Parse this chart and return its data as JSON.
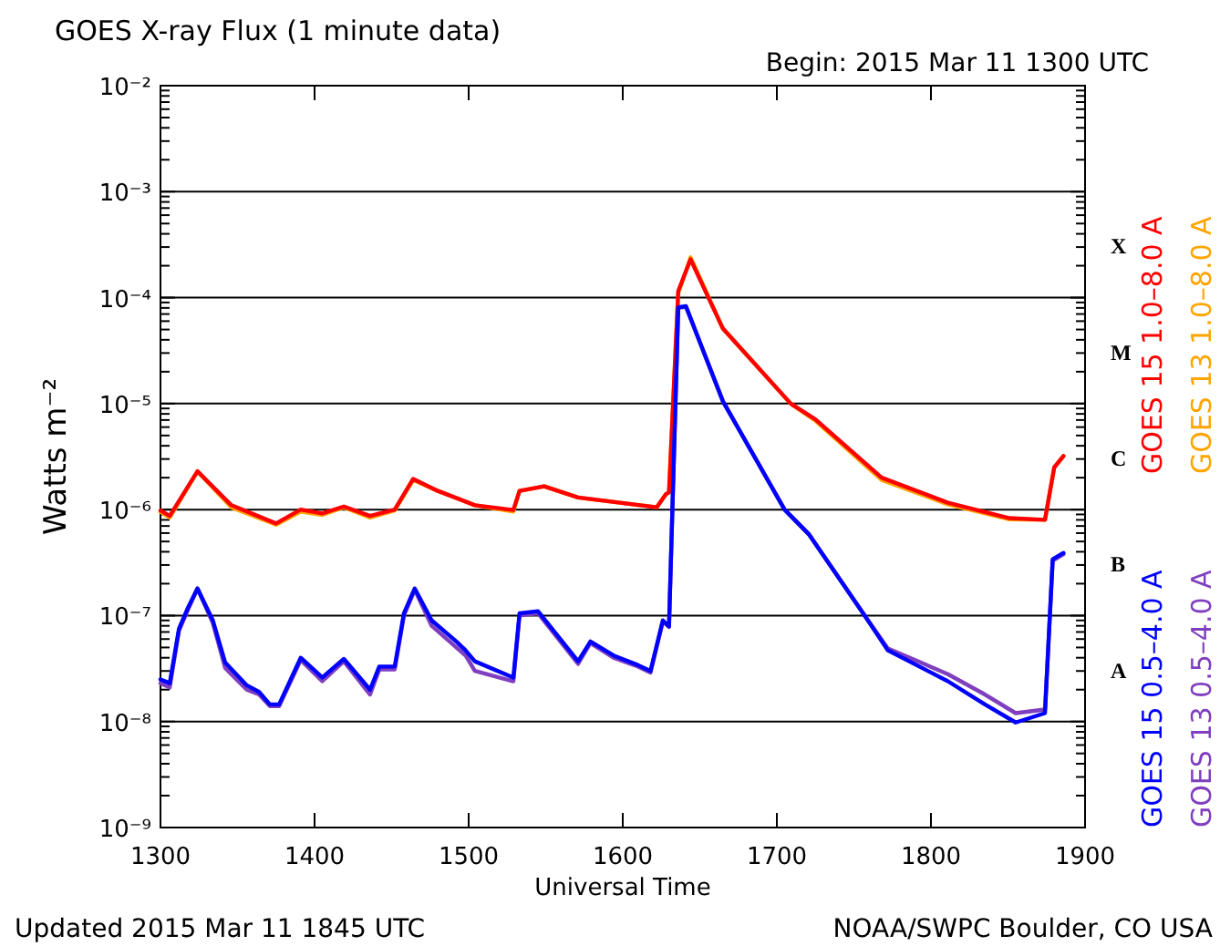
{
  "chart_data": {
    "type": "line",
    "title": "GOES X-ray Flux (1 minute data)",
    "subtitle": "Begin: 2015 Mar 11 1300 UTC",
    "xlabel": "Universal Time",
    "ylabel": "Watts m⁻²",
    "annotations": [
      "Updated 2015 Mar 11 1845 UTC",
      "NOAA/SWPC Boulder, CO USA",
      "A",
      "B",
      "C",
      "M",
      "X"
    ],
    "xlim": [
      1300,
      1900
    ],
    "xticks": [
      1300,
      1400,
      1500,
      1600,
      1700,
      1800,
      1900
    ],
    "ylim": [
      1e-09,
      0.01
    ],
    "yticks": [
      {
        "value": 1e-09,
        "label": "10⁻⁹"
      },
      {
        "value": 2e-09,
        "label": null
      },
      {
        "value": 3e-09,
        "label": null
      },
      {
        "value": 4e-09,
        "label": null
      },
      {
        "value": 5e-09,
        "label": null
      },
      {
        "value": 6e-09,
        "label": null
      },
      {
        "value": 7e-09,
        "label": null
      },
      {
        "value": 8e-09,
        "label": null
      },
      {
        "value": 9e-09,
        "label": null
      },
      {
        "value": 1e-08,
        "label": "10⁻⁸"
      },
      {
        "value": 2e-08,
        "label": null
      },
      {
        "value": 3e-08,
        "label": null
      },
      {
        "value": 4e-08,
        "label": null
      },
      {
        "value": 5e-08,
        "label": null
      },
      {
        "value": 6e-08,
        "label": null
      },
      {
        "value": 7e-08,
        "label": null
      },
      {
        "value": 8e-08,
        "label": null
      },
      {
        "value": 9e-08,
        "label": null
      },
      {
        "value": 1e-07,
        "label": "10⁻⁷"
      },
      {
        "value": 2e-07,
        "label": null
      },
      {
        "value": 3e-07,
        "label": null
      },
      {
        "value": 4e-07,
        "label": null
      },
      {
        "value": 5e-07,
        "label": null
      },
      {
        "value": 6e-07,
        "label": null
      },
      {
        "value": 7e-07,
        "label": null
      },
      {
        "value": 8e-07,
        "label": null
      },
      {
        "value": 9e-07,
        "label": null
      },
      {
        "value": 1e-06,
        "label": "10⁻⁶"
      },
      {
        "value": 2e-06,
        "label": null
      },
      {
        "value": 3e-06,
        "label": null
      },
      {
        "value": 4e-06,
        "label": null
      },
      {
        "value": 5e-06,
        "label": null
      },
      {
        "value": 6e-06,
        "label": null
      },
      {
        "value": 7e-06,
        "label": null
      },
      {
        "value": 8e-06,
        "label": null
      },
      {
        "value": 9e-06,
        "label": null
      },
      {
        "value": 1e-05,
        "label": "10⁻⁵"
      },
      {
        "value": 2e-05,
        "label": null
      },
      {
        "value": 3e-05,
        "label": null
      },
      {
        "value": 4e-05,
        "label": null
      },
      {
        "value": 5e-05,
        "label": null
      },
      {
        "value": 6e-05,
        "label": null
      },
      {
        "value": 7e-05,
        "label": null
      },
      {
        "value": 8e-05,
        "label": null
      },
      {
        "value": 9e-05,
        "label": null
      },
      {
        "value": 0.0001,
        "label": "10⁻⁴"
      },
      {
        "value": 0.0002,
        "label": null
      },
      {
        "value": 0.0003,
        "label": null
      },
      {
        "value": 0.0004,
        "label": null
      },
      {
        "value": 0.0005,
        "label": null
      },
      {
        "value": 0.0006,
        "label": null
      },
      {
        "value": 0.0007,
        "label": null
      },
      {
        "value": 0.0008,
        "label": null
      },
      {
        "value": 0.0009,
        "label": null
      },
      {
        "value": 0.001,
        "label": "10⁻³"
      },
      {
        "value": 0.002,
        "label": null
      },
      {
        "value": 0.003,
        "label": null
      },
      {
        "value": 0.004,
        "label": null
      },
      {
        "value": 0.005,
        "label": null
      },
      {
        "value": 0.006,
        "label": null
      },
      {
        "value": 0.007,
        "label": null
      },
      {
        "value": 0.008,
        "label": null
      },
      {
        "value": 0.009,
        "label": null
      },
      {
        "value": 0.01,
        "label": "10⁻²"
      }
    ],
    "log": true,
    "grid": "y",
    "legend": "right",
    "marker": "none",
    "line_style": "solid",
    "series": [
      {
        "name": "GOES 13 1.0–8.0 A",
        "color": "#ffa500",
        "x": [
          1300,
          1306,
          1324,
          1346,
          1375,
          1391,
          1405,
          1419,
          1436,
          1452,
          1464,
          1480,
          1504,
          1529,
          1533,
          1549,
          1571,
          1590,
          1622,
          1628,
          1630,
          1636,
          1644,
          1665,
          1709,
          1725,
          1768,
          1811,
          1851,
          1874,
          1880,
          1886
        ],
        "values": [
          9.5e-07,
          8.4e-07,
          2.3e-06,
          1.05e-06,
          7.2e-07,
          9.6e-07,
          8.9e-07,
          1.05e-06,
          8.4e-07,
          9.8e-07,
          1.9e-06,
          1.5e-06,
          1.1e-06,
          9.6e-07,
          1.5e-06,
          1.66e-06,
          1.3e-06,
          1.2e-06,
          1.05e-06,
          1.4e-06,
          1.45e-06,
          0.00011,
          0.00024,
          5.1e-05,
          1e-05,
          6.9e-06,
          1.9e-06,
          1.12e-06,
          8.1e-07,
          8e-07,
          2.5e-06,
          3.2e-06
        ]
      },
      {
        "name": "GOES 15 1.0–8.0 A",
        "color": "#ff0000",
        "x": [
          1300,
          1306,
          1324,
          1346,
          1375,
          1391,
          1405,
          1419,
          1436,
          1452,
          1464,
          1480,
          1504,
          1529,
          1533,
          1549,
          1571,
          1590,
          1622,
          1628,
          1630,
          1636,
          1644,
          1665,
          1709,
          1725,
          1768,
          1811,
          1851,
          1874,
          1880,
          1886
        ],
        "values": [
          9.8e-07,
          8.7e-07,
          2.3e-06,
          1.1e-06,
          7.4e-07,
          1e-06,
          9.2e-07,
          1.07e-06,
          8.7e-07,
          1e-06,
          1.95e-06,
          1.5e-06,
          1.1e-06,
          9.9e-07,
          1.5e-06,
          1.66e-06,
          1.3e-06,
          1.2e-06,
          1.05e-06,
          1.4e-06,
          1.45e-06,
          0.000115,
          0.00023,
          5.1e-05,
          1e-05,
          7.1e-06,
          2e-06,
          1.16e-06,
          8.3e-07,
          8e-07,
          2.5e-06,
          3.2e-06
        ]
      },
      {
        "name": "GOES 13 0.5–4.0 A",
        "color": "#7f3fbf",
        "x": [
          1300,
          1306,
          1312,
          1318,
          1324,
          1334,
          1342,
          1356,
          1364,
          1371,
          1377,
          1391,
          1405,
          1419,
          1436,
          1442,
          1452,
          1458,
          1465,
          1476,
          1492,
          1498,
          1504,
          1529,
          1533,
          1545,
          1571,
          1579,
          1594,
          1610,
          1618,
          1626,
          1630,
          1636,
          1641,
          1665,
          1705,
          1721,
          1756,
          1772,
          1811,
          1835,
          1855,
          1874,
          1879,
          1886
        ],
        "values": [
          2.3e-08,
          2.1e-08,
          7.2e-08,
          1.15e-07,
          1.8e-07,
          8.5e-08,
          3.2e-08,
          2e-08,
          1.8e-08,
          1.4e-08,
          1.4e-08,
          3.8e-08,
          2.4e-08,
          3.7e-08,
          1.8e-08,
          3.1e-08,
          3.1e-08,
          1e-07,
          1.75e-07,
          8e-08,
          5e-08,
          4.2e-08,
          3e-08,
          2.4e-08,
          1e-07,
          1.05e-07,
          3.5e-08,
          5.5e-08,
          4e-08,
          3.3e-08,
          2.9e-08,
          8.8e-08,
          7.8e-08,
          8e-05,
          8.2e-05,
          1.05e-05,
          1e-06,
          5.8e-07,
          1.05e-07,
          4.9e-08,
          2.8e-08,
          1.8e-08,
          1.2e-08,
          1.3e-08,
          3.3e-07,
          3.8e-07
        ]
      },
      {
        "name": "GOES 15 0.5–4.0 A",
        "color": "#0000ff",
        "x": [
          1300,
          1306,
          1312,
          1318,
          1324,
          1334,
          1342,
          1356,
          1364,
          1371,
          1377,
          1391,
          1405,
          1419,
          1436,
          1442,
          1452,
          1458,
          1465,
          1476,
          1492,
          1498,
          1504,
          1529,
          1533,
          1545,
          1571,
          1579,
          1594,
          1610,
          1618,
          1626,
          1630,
          1636,
          1641,
          1665,
          1705,
          1721,
          1756,
          1772,
          1811,
          1835,
          1855,
          1874,
          1879,
          1886
        ],
        "values": [
          2.5e-08,
          2.3e-08,
          7.5e-08,
          1.2e-07,
          1.8e-07,
          9e-08,
          3.6e-08,
          2.2e-08,
          1.9e-08,
          1.45e-08,
          1.45e-08,
          4e-08,
          2.6e-08,
          3.9e-08,
          2e-08,
          3.3e-08,
          3.3e-08,
          1.05e-07,
          1.8e-07,
          9e-08,
          5.7e-08,
          4.7e-08,
          3.7e-08,
          2.6e-08,
          1.05e-07,
          1.1e-07,
          3.7e-08,
          5.7e-08,
          4.2e-08,
          3.4e-08,
          3e-08,
          9e-08,
          7.9e-08,
          8.1e-05,
          8.3e-05,
          1.05e-05,
          1e-06,
          5.8e-07,
          1.05e-07,
          4.7e-08,
          2.4e-08,
          1.45e-08,
          9.8e-09,
          1.2e-08,
          3.4e-07,
          3.9e-07
        ]
      }
    ]
  }
}
